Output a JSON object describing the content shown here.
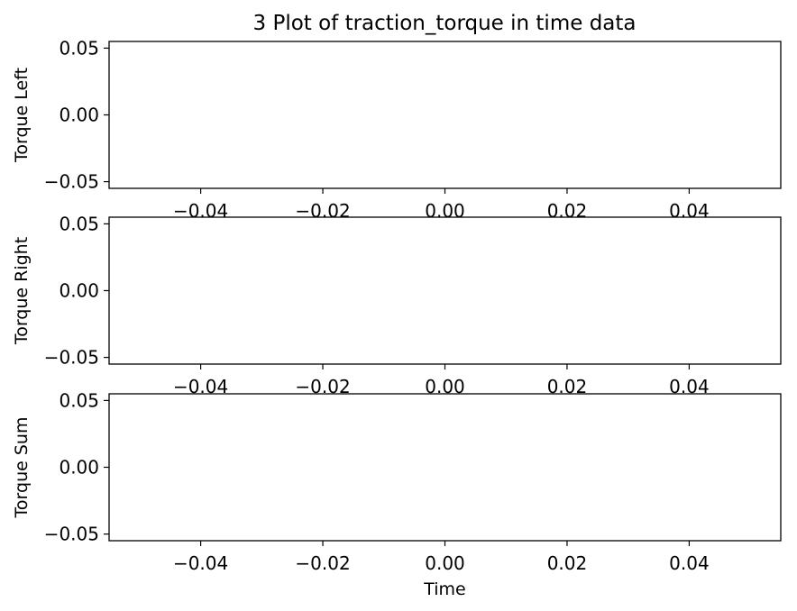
{
  "figure": {
    "title": "3 Plot of traction_torque in time data"
  },
  "chart_data": [
    {
      "type": "line",
      "title": "3 Plot of traction_torque in time data",
      "xlabel": "",
      "ylabel": "Torque Left",
      "xlim": [
        -0.055,
        0.055
      ],
      "ylim": [
        -0.055,
        0.055
      ],
      "x_ticks": [
        -0.04,
        -0.02,
        0.0,
        0.02,
        0.04
      ],
      "x_tick_labels": [
        "−0.04",
        "−0.02",
        "0.00",
        "0.02",
        "0.04"
      ],
      "y_ticks": [
        0.05,
        0.0,
        -0.05
      ],
      "y_tick_labels": [
        "0.05",
        "0.00",
        "−0.05"
      ],
      "x": [],
      "y": [],
      "grid": false
    },
    {
      "type": "line",
      "title": "",
      "xlabel": "",
      "ylabel": "Torque Right",
      "xlim": [
        -0.055,
        0.055
      ],
      "ylim": [
        -0.055,
        0.055
      ],
      "x_ticks": [
        -0.04,
        -0.02,
        0.0,
        0.02,
        0.04
      ],
      "x_tick_labels": [
        "−0.04",
        "−0.02",
        "0.00",
        "0.02",
        "0.04"
      ],
      "y_ticks": [
        0.05,
        0.0,
        -0.05
      ],
      "y_tick_labels": [
        "0.05",
        "0.00",
        "−0.05"
      ],
      "x": [],
      "y": [],
      "grid": false
    },
    {
      "type": "line",
      "title": "",
      "xlabel": "Time",
      "ylabel": "Torque Sum",
      "xlim": [
        -0.055,
        0.055
      ],
      "ylim": [
        -0.055,
        0.055
      ],
      "x_ticks": [
        -0.04,
        -0.02,
        0.0,
        0.02,
        0.04
      ],
      "x_tick_labels": [
        "−0.04",
        "−0.02",
        "0.00",
        "0.02",
        "0.04"
      ],
      "y_ticks": [
        0.05,
        0.0,
        -0.05
      ],
      "y_tick_labels": [
        "0.05",
        "0.00",
        "−0.05"
      ],
      "x": [],
      "y": [],
      "grid": false
    }
  ]
}
